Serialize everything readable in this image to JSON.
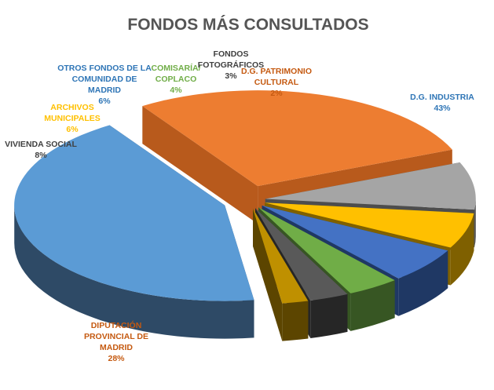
{
  "chart_data": {
    "type": "pie",
    "title": "FONDOS MÁS CONSULTADOS",
    "slices": [
      {
        "name": "D.G. INDUSTRIA",
        "label_lines": [
          "D.G. INDUSTRIA"
        ],
        "value": 43,
        "value_label": "43%",
        "color": "#5b9bd5",
        "side": "#2e4a66",
        "label_color": "#2e75b6",
        "exploded": true
      },
      {
        "name": "DIPUTACIÓN PROVINCIAL DE MADRID",
        "label_lines": [
          "DIPUTACIÓN",
          "PROVINCIAL DE",
          "MADRID"
        ],
        "value": 28,
        "value_label": "28%",
        "color": "#ed7d31",
        "side": "#b85a1c",
        "label_color": "#c55a11",
        "exploded": true
      },
      {
        "name": "VIVIENDA SOCIAL",
        "label_lines": [
          "VIVIENDA SOCIAL"
        ],
        "value": 8,
        "value_label": "8%",
        "color": "#a5a5a5",
        "side": "#4d4d4d",
        "label_color": "#404040",
        "exploded": true
      },
      {
        "name": "ARCHIVOS MUNICIPALES",
        "label_lines": [
          "ARCHIVOS",
          "MUNICIPALES"
        ],
        "value": 6,
        "value_label": "6%",
        "color": "#ffc000",
        "side": "#7f6000",
        "label_color": "#ffc000",
        "exploded": true
      },
      {
        "name": "OTROS FONDOS DE LA COMUNIDAD DE MADRID",
        "label_lines": [
          "OTROS FONDOS DE LA",
          "COMUNIDAD DE",
          "MADRID"
        ],
        "value": 6,
        "value_label": "6%",
        "color": "#4472c4",
        "side": "#1f3864",
        "label_color": "#2e75b6",
        "exploded": true
      },
      {
        "name": "COMISARÍA/ COPLACO",
        "label_lines": [
          "COMISARÍA/",
          "COPLACO"
        ],
        "value": 4,
        "value_label": "4%",
        "color": "#70ad47",
        "side": "#375623",
        "label_color": "#70ad47",
        "exploded": true
      },
      {
        "name": "FONDOS FOTOGRÁFICOS",
        "label_lines": [
          "FONDOS",
          "FOTOGRÁFICOS"
        ],
        "value": 3,
        "value_label": "3%",
        "color": "#595959",
        "side": "#262626",
        "label_color": "#404040",
        "exploded": true
      },
      {
        "name": "D.G. PATRIMONIO CULTURAL",
        "label_lines": [
          "D.G. PATRIMONIO",
          "CULTURAL"
        ],
        "value": 2,
        "value_label": "2%",
        "color": "#bf9000",
        "side": "#5c4500",
        "label_color": "#c55a11",
        "exploded": true
      }
    ],
    "legend": "none",
    "style": "3d-exploded"
  }
}
